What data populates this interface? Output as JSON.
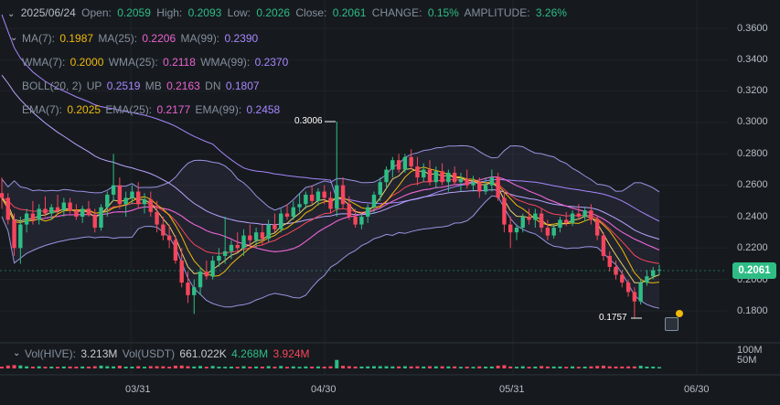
{
  "header": {
    "date": "2025/06/24",
    "open_label": "Open:",
    "open": "0.2059",
    "high_label": "High:",
    "high": "0.2093",
    "low_label": "Low:",
    "low": "0.2026",
    "close_label": "Close:",
    "close": "0.2061",
    "change_label": "CHANGE:",
    "change": "0.15%",
    "amplitude_label": "AMPLITUDE:",
    "amplitude": "3.26%"
  },
  "indicators": {
    "ma": [
      {
        "label": "MA(7):",
        "value": "0.1987"
      },
      {
        "label": "MA(25):",
        "value": "0.2206"
      },
      {
        "label": "MA(99):",
        "value": "0.2390"
      }
    ],
    "wma": [
      {
        "label": "WMA(7):",
        "value": "0.2000"
      },
      {
        "label": "WMA(25):",
        "value": "0.2118"
      },
      {
        "label": "WMA(99):",
        "value": "0.2370"
      }
    ],
    "boll": {
      "label": "BOLL(20, 2)",
      "up_label": "UP",
      "up": "0.2519",
      "mb_label": "MB",
      "mb": "0.2163",
      "dn_label": "DN",
      "dn": "0.1807"
    },
    "ema": [
      {
        "label": "EMA(7):",
        "value": "0.2025"
      },
      {
        "label": "EMA(25):",
        "value": "0.2177"
      },
      {
        "label": "EMA(99):",
        "value": "0.2458"
      }
    ]
  },
  "volume": {
    "hive_label": "Vol(HIVE):",
    "hive": "3.213M",
    "usdt_label": "Vol(USDT)",
    "usdt": "661.022K",
    "v1": "4.268M",
    "v2": "3.924M"
  },
  "annotations": {
    "high_marker": "0.3006",
    "low_marker": "0.1757"
  },
  "current_price": "0.2061",
  "price_axis": [
    "0.3600",
    "0.3400",
    "0.3200",
    "0.3000",
    "0.2800",
    "0.2600",
    "0.2400",
    "0.2200",
    "0.2000",
    "0.1800"
  ],
  "volume_axis": [
    "100M",
    "50M"
  ],
  "time_axis": [
    "03/31",
    "04/30",
    "05/31",
    "06/30"
  ],
  "colors": {
    "up": "#2ebd85",
    "down": "#f6465d",
    "ma7": "#f0b90b",
    "ma25": "#ea62d0",
    "ma99": "#a786ff",
    "boll": "#8e86d8"
  },
  "chart_data": {
    "type": "candlestick",
    "ylim": [
      0.17,
      0.365
    ],
    "candles": [
      [
        0.255,
        0.265,
        0.245,
        0.252
      ],
      [
        0.252,
        0.255,
        0.235,
        0.238
      ],
      [
        0.238,
        0.242,
        0.215,
        0.22
      ],
      [
        0.22,
        0.24,
        0.21,
        0.235
      ],
      [
        0.235,
        0.245,
        0.23,
        0.242
      ],
      [
        0.242,
        0.25,
        0.235,
        0.238
      ],
      [
        0.238,
        0.248,
        0.235,
        0.245
      ],
      [
        0.245,
        0.253,
        0.24,
        0.242
      ],
      [
        0.242,
        0.248,
        0.238,
        0.246
      ],
      [
        0.246,
        0.254,
        0.242,
        0.244
      ],
      [
        0.244,
        0.252,
        0.24,
        0.249
      ],
      [
        0.249,
        0.252,
        0.242,
        0.244
      ],
      [
        0.244,
        0.248,
        0.238,
        0.24
      ],
      [
        0.24,
        0.247,
        0.236,
        0.245
      ],
      [
        0.245,
        0.25,
        0.24,
        0.241
      ],
      [
        0.241,
        0.245,
        0.23,
        0.233
      ],
      [
        0.233,
        0.248,
        0.231,
        0.246
      ],
      [
        0.246,
        0.256,
        0.24,
        0.254
      ],
      [
        0.254,
        0.28,
        0.25,
        0.26
      ],
      [
        0.26,
        0.265,
        0.245,
        0.248
      ],
      [
        0.248,
        0.256,
        0.24,
        0.252
      ],
      [
        0.252,
        0.26,
        0.248,
        0.256
      ],
      [
        0.256,
        0.262,
        0.245,
        0.248
      ],
      [
        0.248,
        0.255,
        0.242,
        0.251
      ],
      [
        0.251,
        0.256,
        0.24,
        0.243
      ],
      [
        0.243,
        0.25,
        0.23,
        0.235
      ],
      [
        0.235,
        0.24,
        0.225,
        0.228
      ],
      [
        0.228,
        0.235,
        0.22,
        0.225
      ],
      [
        0.225,
        0.228,
        0.21,
        0.212
      ],
      [
        0.212,
        0.22,
        0.195,
        0.198
      ],
      [
        0.198,
        0.205,
        0.185,
        0.19
      ],
      [
        0.19,
        0.2,
        0.178,
        0.195
      ],
      [
        0.195,
        0.208,
        0.19,
        0.205
      ],
      [
        0.205,
        0.212,
        0.2,
        0.202
      ],
      [
        0.202,
        0.215,
        0.2,
        0.212
      ],
      [
        0.212,
        0.22,
        0.208,
        0.215
      ],
      [
        0.215,
        0.24,
        0.21,
        0.218
      ],
      [
        0.218,
        0.225,
        0.213,
        0.222
      ],
      [
        0.222,
        0.23,
        0.218,
        0.22
      ],
      [
        0.22,
        0.232,
        0.215,
        0.228
      ],
      [
        0.228,
        0.235,
        0.22,
        0.225
      ],
      [
        0.225,
        0.233,
        0.22,
        0.23
      ],
      [
        0.23,
        0.235,
        0.222,
        0.226
      ],
      [
        0.226,
        0.238,
        0.224,
        0.235
      ],
      [
        0.235,
        0.242,
        0.23,
        0.232
      ],
      [
        0.232,
        0.245,
        0.23,
        0.242
      ],
      [
        0.242,
        0.248,
        0.238,
        0.24
      ],
      [
        0.24,
        0.25,
        0.238,
        0.246
      ],
      [
        0.246,
        0.255,
        0.243,
        0.248
      ],
      [
        0.248,
        0.256,
        0.245,
        0.254
      ],
      [
        0.254,
        0.26,
        0.248,
        0.25
      ],
      [
        0.25,
        0.258,
        0.247,
        0.256
      ],
      [
        0.256,
        0.26,
        0.248,
        0.252
      ],
      [
        0.252,
        0.256,
        0.242,
        0.245
      ],
      [
        0.245,
        0.3006,
        0.24,
        0.26
      ],
      [
        0.26,
        0.265,
        0.245,
        0.248
      ],
      [
        0.248,
        0.253,
        0.238,
        0.24
      ],
      [
        0.24,
        0.245,
        0.233,
        0.235
      ],
      [
        0.235,
        0.242,
        0.232,
        0.24
      ],
      [
        0.24,
        0.248,
        0.236,
        0.246
      ],
      [
        0.246,
        0.256,
        0.242,
        0.254
      ],
      [
        0.254,
        0.265,
        0.25,
        0.262
      ],
      [
        0.262,
        0.272,
        0.258,
        0.27
      ],
      [
        0.27,
        0.278,
        0.265,
        0.276
      ],
      [
        0.276,
        0.28,
        0.268,
        0.27
      ],
      [
        0.27,
        0.28,
        0.268,
        0.278
      ],
      [
        0.278,
        0.283,
        0.27,
        0.272
      ],
      [
        0.272,
        0.278,
        0.26,
        0.265
      ],
      [
        0.265,
        0.274,
        0.262,
        0.27
      ],
      [
        0.27,
        0.276,
        0.26,
        0.262
      ],
      [
        0.262,
        0.272,
        0.258,
        0.269
      ],
      [
        0.269,
        0.274,
        0.26,
        0.262
      ],
      [
        0.262,
        0.27,
        0.256,
        0.268
      ],
      [
        0.268,
        0.272,
        0.26,
        0.262
      ],
      [
        0.262,
        0.268,
        0.256,
        0.264
      ],
      [
        0.264,
        0.27,
        0.258,
        0.26
      ],
      [
        0.26,
        0.266,
        0.256,
        0.262
      ],
      [
        0.262,
        0.265,
        0.252,
        0.256
      ],
      [
        0.256,
        0.265,
        0.254,
        0.26
      ],
      [
        0.26,
        0.27,
        0.256,
        0.265
      ],
      [
        0.265,
        0.268,
        0.25,
        0.252
      ],
      [
        0.252,
        0.256,
        0.23,
        0.235
      ],
      [
        0.235,
        0.24,
        0.22,
        0.23
      ],
      [
        0.23,
        0.235,
        0.225,
        0.233
      ],
      [
        0.233,
        0.242,
        0.23,
        0.24
      ],
      [
        0.24,
        0.245,
        0.235,
        0.238
      ],
      [
        0.238,
        0.245,
        0.233,
        0.242
      ],
      [
        0.242,
        0.245,
        0.23,
        0.233
      ],
      [
        0.233,
        0.238,
        0.225,
        0.228
      ],
      [
        0.228,
        0.235,
        0.226,
        0.233
      ],
      [
        0.233,
        0.24,
        0.23,
        0.238
      ],
      [
        0.238,
        0.243,
        0.234,
        0.236
      ],
      [
        0.236,
        0.244,
        0.234,
        0.242
      ],
      [
        0.242,
        0.248,
        0.238,
        0.24
      ],
      [
        0.24,
        0.246,
        0.237,
        0.244
      ],
      [
        0.244,
        0.248,
        0.235,
        0.238
      ],
      [
        0.238,
        0.24,
        0.225,
        0.228
      ],
      [
        0.228,
        0.23,
        0.212,
        0.215
      ],
      [
        0.215,
        0.218,
        0.205,
        0.208
      ],
      [
        0.208,
        0.212,
        0.2,
        0.203
      ],
      [
        0.203,
        0.206,
        0.195,
        0.198
      ],
      [
        0.198,
        0.2,
        0.189,
        0.192
      ],
      [
        0.192,
        0.195,
        0.1757,
        0.186
      ],
      [
        0.186,
        0.2,
        0.184,
        0.198
      ],
      [
        0.198,
        0.206,
        0.196,
        0.202
      ],
      [
        0.202,
        0.208,
        0.2,
        0.2059
      ],
      [
        0.2059,
        0.2093,
        0.2026,
        0.2061
      ]
    ]
  }
}
